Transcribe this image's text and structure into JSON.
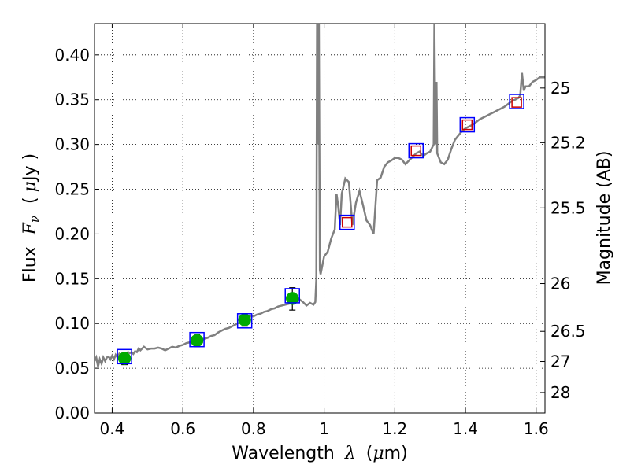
{
  "chart_data": {
    "type": "scatter",
    "title": "",
    "xlabel": "Wavelength",
    "xlabel_symbol": "λ",
    "xlabel_unit_open": "(",
    "xlabel_unit_symbol": "μ",
    "xlabel_unit_rest": "m)",
    "ylabel": "Flux",
    "ylabel_symbol": "F",
    "ylabel_symbol_sub": "ν",
    "ylabel_unit_open": "(",
    "ylabel_unit_symbol": "μ",
    "ylabel_unit_rest": "Jy )",
    "y2label": "Magnitude (AB)",
    "xlim": [
      0.35,
      1.625
    ],
    "ylim": [
      0.0,
      0.435
    ],
    "grid": true,
    "x_ticks": [
      {
        "value": 0.4,
        "label": "0.4"
      },
      {
        "value": 0.6,
        "label": "0.6"
      },
      {
        "value": 0.8,
        "label": "0.8"
      },
      {
        "value": 1.0,
        "label": "1"
      },
      {
        "value": 1.2,
        "label": "1.2"
      },
      {
        "value": 1.4,
        "label": "1.4"
      },
      {
        "value": 1.6,
        "label": "1.6"
      }
    ],
    "y_ticks": [
      {
        "value": 0.0,
        "label": "0.00"
      },
      {
        "value": 0.05,
        "label": "0.05"
      },
      {
        "value": 0.1,
        "label": "0.10"
      },
      {
        "value": 0.15,
        "label": "0.15"
      },
      {
        "value": 0.2,
        "label": "0.20"
      },
      {
        "value": 0.25,
        "label": "0.25"
      },
      {
        "value": 0.3,
        "label": "0.30"
      },
      {
        "value": 0.35,
        "label": "0.35"
      },
      {
        "value": 0.4,
        "label": "0.40"
      }
    ],
    "y2_ticks": [
      {
        "magnitude": 25.0,
        "label": "25"
      },
      {
        "magnitude": 25.2,
        "label": "25.2"
      },
      {
        "magnitude": 25.5,
        "label": "25.5"
      },
      {
        "magnitude": 26.0,
        "label": "26"
      },
      {
        "magnitude": 26.5,
        "label": "26.5"
      },
      {
        "magnitude": 27.0,
        "label": "27"
      },
      {
        "magnitude": 28.0,
        "label": "28"
      }
    ],
    "model_spectrum": {
      "color": "#808080",
      "x": [
        0.35,
        0.355,
        0.36,
        0.365,
        0.37,
        0.375,
        0.38,
        0.385,
        0.39,
        0.395,
        0.4,
        0.405,
        0.41,
        0.415,
        0.42,
        0.425,
        0.43,
        0.435,
        0.44,
        0.445,
        0.45,
        0.455,
        0.46,
        0.465,
        0.47,
        0.475,
        0.48,
        0.49,
        0.5,
        0.51,
        0.52,
        0.53,
        0.54,
        0.55,
        0.56,
        0.57,
        0.58,
        0.59,
        0.6,
        0.61,
        0.62,
        0.63,
        0.64,
        0.65,
        0.66,
        0.67,
        0.68,
        0.69,
        0.7,
        0.71,
        0.72,
        0.73,
        0.74,
        0.75,
        0.76,
        0.77,
        0.78,
        0.79,
        0.8,
        0.81,
        0.82,
        0.83,
        0.84,
        0.85,
        0.86,
        0.87,
        0.88,
        0.89,
        0.9,
        0.91,
        0.92,
        0.93,
        0.94,
        0.95,
        0.96,
        0.97,
        0.975,
        0.978,
        0.98,
        0.982,
        0.985,
        0.988,
        0.99,
        1.0,
        1.01,
        1.02,
        1.03,
        1.035,
        1.04,
        1.045,
        1.05,
        1.06,
        1.07,
        1.08,
        1.09,
        1.1,
        1.11,
        1.12,
        1.13,
        1.14,
        1.15,
        1.16,
        1.17,
        1.18,
        1.19,
        1.2,
        1.21,
        1.22,
        1.23,
        1.24,
        1.25,
        1.26,
        1.27,
        1.28,
        1.29,
        1.3,
        1.31,
        1.312,
        1.315,
        1.318,
        1.32,
        1.33,
        1.34,
        1.35,
        1.36,
        1.37,
        1.38,
        1.39,
        1.4,
        1.41,
        1.42,
        1.43,
        1.44,
        1.45,
        1.46,
        1.47,
        1.48,
        1.49,
        1.5,
        1.51,
        1.52,
        1.53,
        1.54,
        1.55,
        1.555,
        1.56,
        1.565,
        1.57,
        1.58,
        1.59,
        1.6,
        1.61,
        1.625
      ],
      "y": [
        0.058,
        0.062,
        0.052,
        0.06,
        0.055,
        0.062,
        0.058,
        0.062,
        0.063,
        0.06,
        0.064,
        0.06,
        0.065,
        0.062,
        0.066,
        0.063,
        0.064,
        0.065,
        0.066,
        0.068,
        0.067,
        0.068,
        0.066,
        0.069,
        0.068,
        0.072,
        0.07,
        0.074,
        0.071,
        0.072,
        0.072,
        0.073,
        0.072,
        0.07,
        0.072,
        0.074,
        0.073,
        0.075,
        0.076,
        0.078,
        0.079,
        0.08,
        0.081,
        0.082,
        0.083,
        0.084,
        0.086,
        0.087,
        0.09,
        0.092,
        0.094,
        0.095,
        0.097,
        0.099,
        0.101,
        0.103,
        0.105,
        0.108,
        0.108,
        0.11,
        0.111,
        0.113,
        0.114,
        0.116,
        0.117,
        0.119,
        0.12,
        0.121,
        0.122,
        0.123,
        0.125,
        0.127,
        0.124,
        0.12,
        0.123,
        0.121,
        0.124,
        0.15,
        0.435,
        0.3,
        0.435,
        0.16,
        0.155,
        0.175,
        0.18,
        0.195,
        0.205,
        0.245,
        0.23,
        0.21,
        0.245,
        0.262,
        0.258,
        0.21,
        0.235,
        0.248,
        0.232,
        0.215,
        0.21,
        0.2,
        0.26,
        0.263,
        0.275,
        0.28,
        0.282,
        0.285,
        0.285,
        0.283,
        0.278,
        0.282,
        0.286,
        0.29,
        0.292,
        0.287,
        0.29,
        0.292,
        0.3,
        0.435,
        0.3,
        0.37,
        0.29,
        0.28,
        0.278,
        0.283,
        0.295,
        0.305,
        0.31,
        0.315,
        0.318,
        0.32,
        0.322,
        0.325,
        0.328,
        0.33,
        0.332,
        0.334,
        0.336,
        0.338,
        0.34,
        0.342,
        0.345,
        0.348,
        0.35,
        0.352,
        0.355,
        0.38,
        0.36,
        0.365,
        0.365,
        0.37,
        0.372,
        0.375,
        0.375
      ]
    },
    "series": [
      {
        "marker": "circle",
        "color": "#00aa00",
        "x": [
          0.435,
          0.64,
          0.775,
          0.91
        ],
        "y": [
          0.061,
          0.081,
          0.104,
          0.128
        ],
        "yerr_low": [
          0.054,
          0.074,
          0.097,
          0.115
        ],
        "yerr_high": [
          0.068,
          0.088,
          0.111,
          0.14
        ]
      },
      {
        "marker": "square-open",
        "color": "#0000ff",
        "x": [
          0.435,
          0.64,
          0.775,
          0.91,
          1.065,
          1.26,
          1.405,
          1.545
        ],
        "y": [
          0.063,
          0.082,
          0.103,
          0.131,
          0.213,
          0.293,
          0.322,
          0.348
        ]
      },
      {
        "marker": "square-open-small",
        "color": "#cc0000",
        "x": [
          1.065,
          1.26,
          1.405,
          1.545
        ],
        "y": [
          0.213,
          0.293,
          0.322,
          0.347
        ]
      }
    ]
  }
}
